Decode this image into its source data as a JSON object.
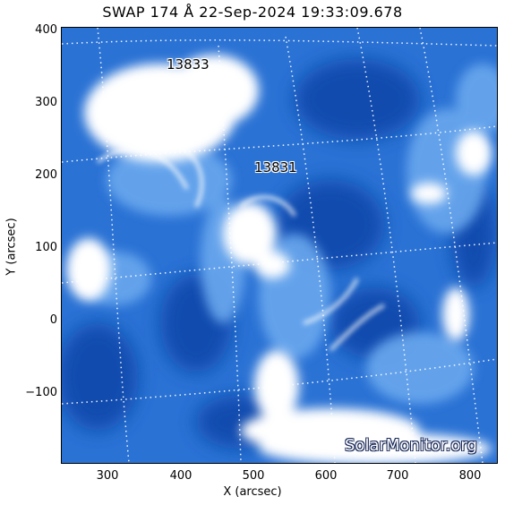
{
  "title": "SWAP 174 Å 22-Sep-2024 19:33:09.678",
  "axes": {
    "xlabel": "X (arcsec)",
    "ylabel": "Y (arcsec)",
    "x_ticks": [
      "300",
      "400",
      "500",
      "600",
      "700",
      "800"
    ],
    "y_ticks": [
      "400",
      "300",
      "200",
      "100",
      "0",
      "−100"
    ],
    "xlim": [
      235,
      840
    ],
    "ylim": [
      -200,
      405
    ]
  },
  "active_regions": [
    {
      "number": "13833",
      "x": 400,
      "y": 350
    },
    {
      "number": "13831",
      "x": 520,
      "y": 215
    }
  ],
  "watermark": "SolarMonitor.org",
  "colors": {
    "background": "#ffffff",
    "image_base": "#2a6fd0",
    "image_dark": "#0a3a9a",
    "image_bright": "#ffffff",
    "grid": "#ffffff"
  }
}
